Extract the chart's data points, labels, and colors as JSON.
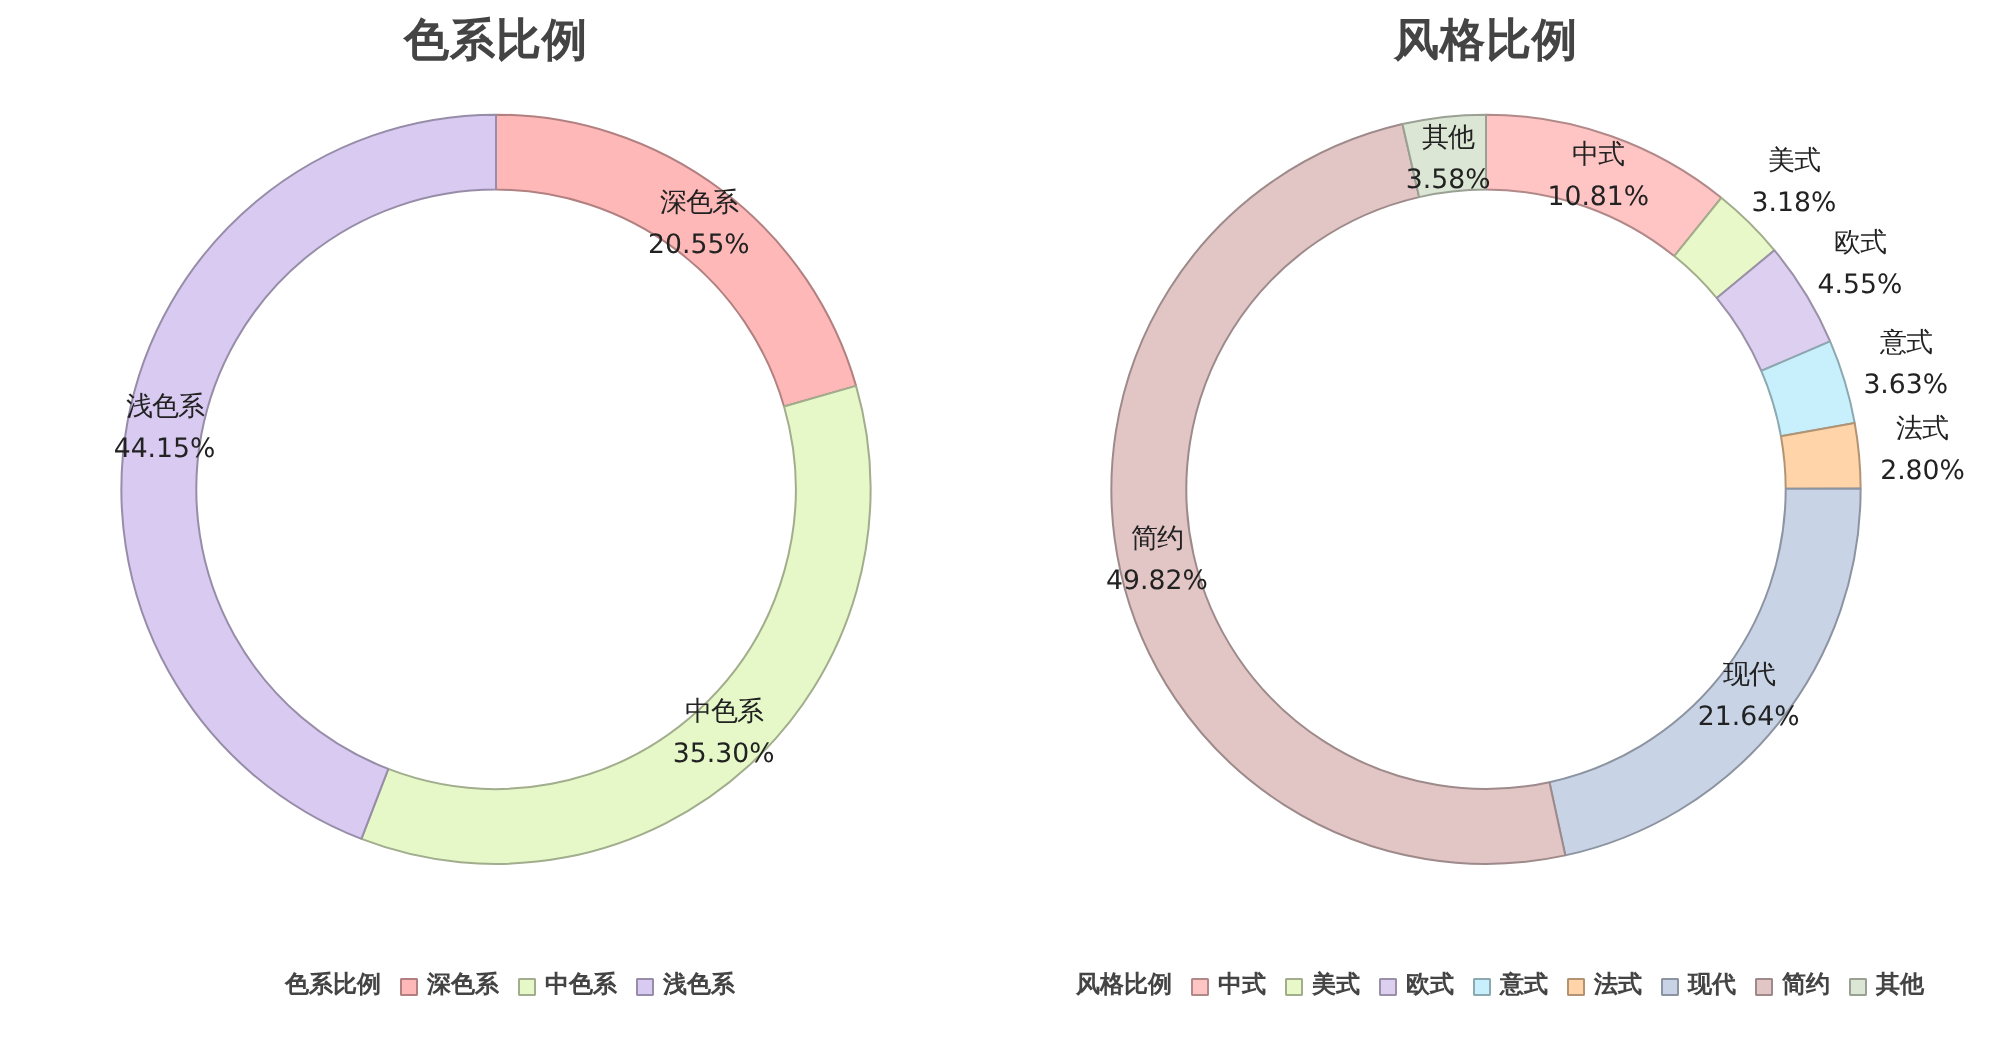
{
  "chart_data": [
    {
      "type": "donut",
      "title": "色系比例",
      "categories": [
        "色系比例",
        "深色系",
        "中色系",
        "浅色系"
      ],
      "values": [
        0,
        20.55,
        35.3,
        44.15
      ],
      "colors": [
        "#a8c8f0",
        "#ffb8b8",
        "#e6f8c8",
        "#d8caf0"
      ],
      "value_labels": [
        null,
        "20.55%",
        "35.30%",
        "44.15%"
      ],
      "legend": "bottom"
    },
    {
      "type": "donut",
      "title": "风格比例",
      "categories": [
        "风格比例",
        "中式",
        "美式",
        "欧式",
        "意式",
        "法式",
        "现代",
        "简约",
        "其他"
      ],
      "values": [
        0,
        10.81,
        3.18,
        4.55,
        3.63,
        2.8,
        21.64,
        49.82,
        3.58
      ],
      "colors": [
        "#a8c8f0",
        "#ffc4c4",
        "#e8f8c8",
        "#dccff0",
        "#c8f0fc",
        "#ffd4a8",
        "#c8d4e6",
        "#e2c6c6",
        "#dce6d4"
      ],
      "value_labels": [
        null,
        "10.81%",
        "3.18%",
        "4.55%",
        "3.63%",
        "2.80%",
        "21.64%",
        "49.82%",
        "3.58%"
      ],
      "legend": "bottom"
    }
  ]
}
